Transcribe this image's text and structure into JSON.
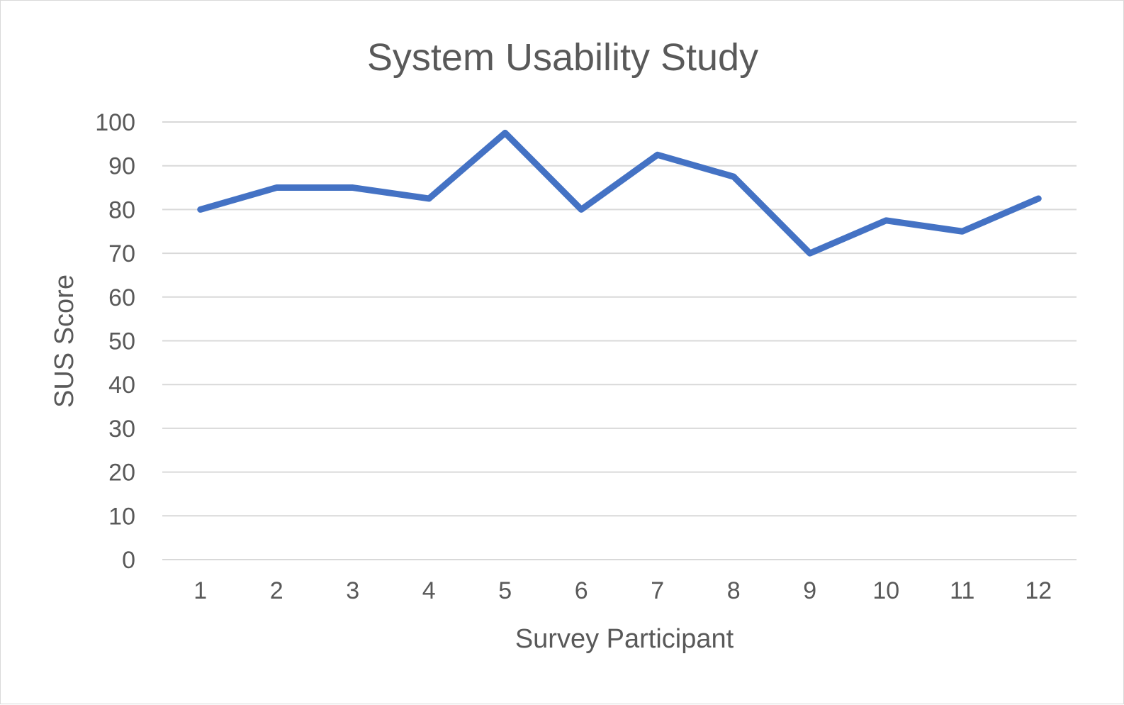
{
  "chart_data": {
    "type": "line",
    "title": "System Usability Study",
    "xlabel": "Survey Participant",
    "ylabel": "SUS Score",
    "categories": [
      "1",
      "2",
      "3",
      "4",
      "5",
      "6",
      "7",
      "8",
      "9",
      "10",
      "11",
      "12"
    ],
    "series": [
      {
        "values": [
          80,
          85,
          85,
          82.5,
          97.5,
          80,
          92.5,
          87.5,
          70,
          77.5,
          75,
          82.5
        ],
        "color": "#4472c4"
      }
    ],
    "ylim": [
      0,
      100
    ],
    "yticks": [
      0,
      10,
      20,
      30,
      40,
      50,
      60,
      70,
      80,
      90,
      100
    ],
    "grid": "horizontal",
    "legend": "none",
    "colors": {
      "grid": "#d9d9d9",
      "text": "#595959",
      "border": "#d9d9d9"
    }
  }
}
